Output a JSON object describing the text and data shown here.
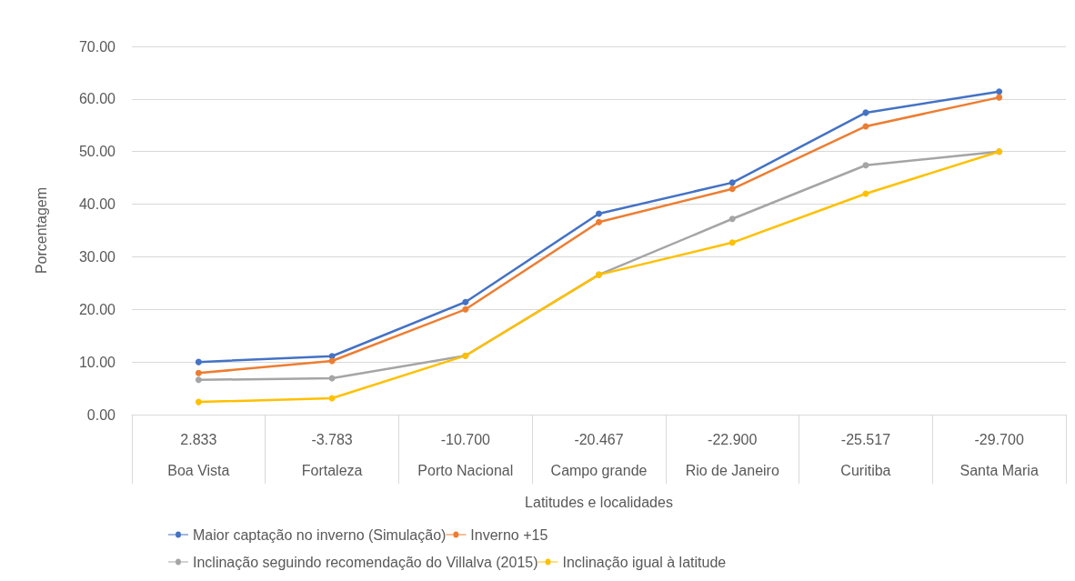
{
  "chart_data": {
    "type": "line",
    "xlabel": "Latitudes e localidades",
    "ylabel": "Porcentagem",
    "categories": [
      "2.833\nBoa Vista",
      "-3.783\nFortaleza",
      "-10.700\nPorto Nacional",
      "-20.467\nCampo grande",
      "-22.900\nRio de Janeiro",
      "-25.517\nCuritiba",
      "-29.700\nSanta Maria"
    ],
    "series": [
      {
        "name": "Maior captação no inverno (Simulação)",
        "color": "#4472c4",
        "values": [
          10.0,
          11.1,
          21.4,
          38.2,
          44.1,
          57.4,
          61.4
        ]
      },
      {
        "name": "Inverno +15",
        "color": "#ed7d31",
        "values": [
          7.9,
          10.2,
          20.0,
          36.6,
          42.9,
          54.8,
          60.3
        ]
      },
      {
        "name": "Inclinação seguindo recomendação do Villalva (2015)",
        "color": "#a5a5a5",
        "values": [
          6.6,
          6.9,
          11.2,
          26.6,
          37.2,
          47.4,
          50.0
        ]
      },
      {
        "name": "Inclinação igual à latitude",
        "color": "#ffc000",
        "values": [
          2.4,
          3.1,
          11.2,
          26.6,
          32.7,
          42.0,
          50.0
        ]
      }
    ],
    "ylim": [
      0,
      70
    ],
    "yticks": [
      {
        "value": 0,
        "label": "0.00"
      },
      {
        "value": 10,
        "label": "10.00"
      },
      {
        "value": 20,
        "label": "20.00"
      },
      {
        "value": 30,
        "label": "30.00"
      },
      {
        "value": 40,
        "label": "40.00"
      },
      {
        "value": 50,
        "label": "50.00"
      },
      {
        "value": 60,
        "label": "60.00"
      },
      {
        "value": 70,
        "label": "70.00"
      }
    ],
    "grid": "y",
    "legend": "bottom",
    "marker": "circle",
    "line_style": "solid"
  }
}
